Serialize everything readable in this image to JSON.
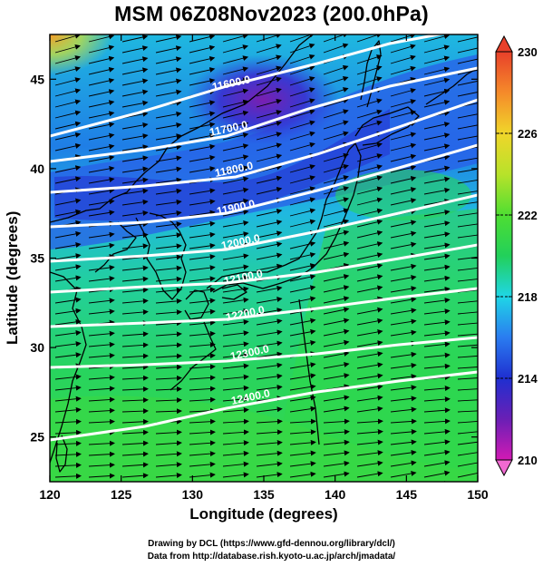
{
  "title": "MSM 06Z08Nov2023 (200.0hPa)",
  "x_axis": {
    "label": "Longitude (degrees)",
    "range": [
      120,
      150
    ],
    "ticks": [
      "120",
      "125",
      "130",
      "135",
      "140",
      "145",
      "150"
    ]
  },
  "y_axis": {
    "label": "Latitude  (degrees)",
    "range": [
      22.5,
      47.5
    ],
    "ticks": [
      "25",
      "30",
      "35",
      "40",
      "45"
    ]
  },
  "colorbar": {
    "range": [
      210,
      230
    ],
    "ticks": [
      "210",
      "214",
      "218",
      "222",
      "226",
      "230"
    ],
    "colors": [
      "#d21ab4",
      "#6a1fb5",
      "#1f2fd0",
      "#2a7cf0",
      "#1fd6e6",
      "#22d05a",
      "#4fde32",
      "#b8e22a",
      "#f0d62a",
      "#f58a2a",
      "#e8402a"
    ]
  },
  "contours": {
    "labels": [
      "11600.0",
      "11700.0",
      "11800.0",
      "11900.0",
      "12000.0",
      "12100.0",
      "12200.0",
      "12300.0",
      "12400.0"
    ]
  },
  "credits": {
    "line1": "Drawing by DCL (https://www.gfd-dennou.org/library/dcl/)",
    "line2": "Data from http://database.rish.kyoto-u.ac.jp/arch/jmadata/"
  },
  "colors": {
    "contour": "#ffffff",
    "vector": "#000000",
    "coast": "#000000"
  }
}
